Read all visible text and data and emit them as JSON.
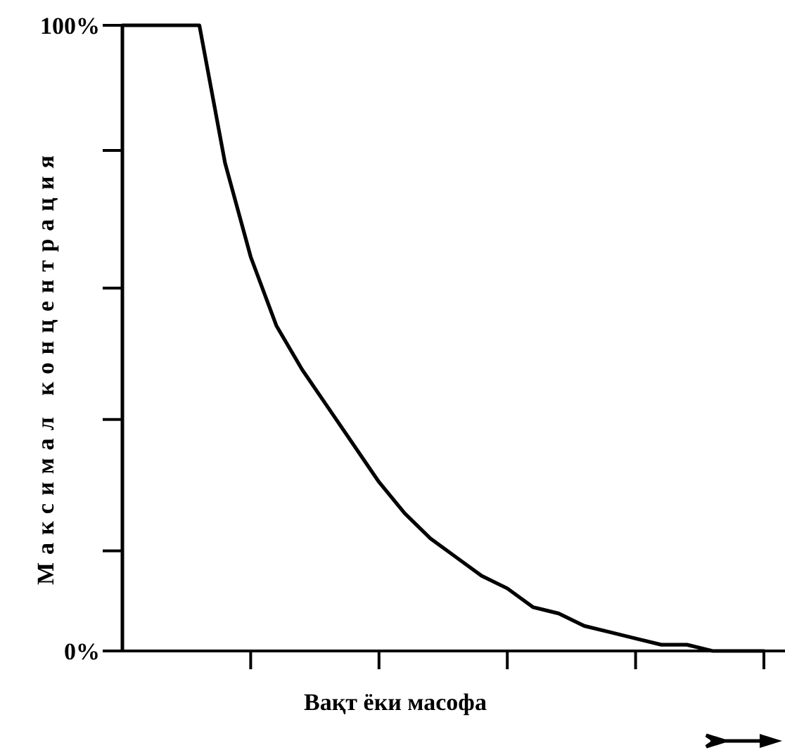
{
  "chart_data": {
    "type": "line",
    "xlabel": "Вақт ёки масофа",
    "ylabel": "Максимал концентрация",
    "categories": [
      null,
      null,
      null,
      null,
      null,
      null,
      null,
      null,
      null,
      null,
      null,
      null,
      null,
      null,
      null,
      null,
      null,
      null,
      null,
      null,
      null,
      null,
      null,
      null,
      null,
      null
    ],
    "series": [
      {
        "color": "#000000",
        "values": [
          100,
          100,
          100,
          100,
          78,
          63,
          52,
          45,
          39,
          33,
          27,
          22,
          18,
          15,
          12,
          10,
          7,
          6,
          4,
          3,
          2,
          1,
          1,
          0,
          0,
          0
        ]
      }
    ],
    "ylim": [
      0,
      100
    ],
    "yticks": [
      {
        "value": 0,
        "label": "0%"
      },
      {
        "value": 16,
        "label": null
      },
      {
        "value": 37,
        "label": null
      },
      {
        "value": 58,
        "label": null
      },
      {
        "value": 80,
        "label": null
      },
      {
        "value": 100,
        "label": "100%"
      }
    ],
    "tick_labels": "y",
    "marker": "none",
    "line_style": "solid"
  }
}
